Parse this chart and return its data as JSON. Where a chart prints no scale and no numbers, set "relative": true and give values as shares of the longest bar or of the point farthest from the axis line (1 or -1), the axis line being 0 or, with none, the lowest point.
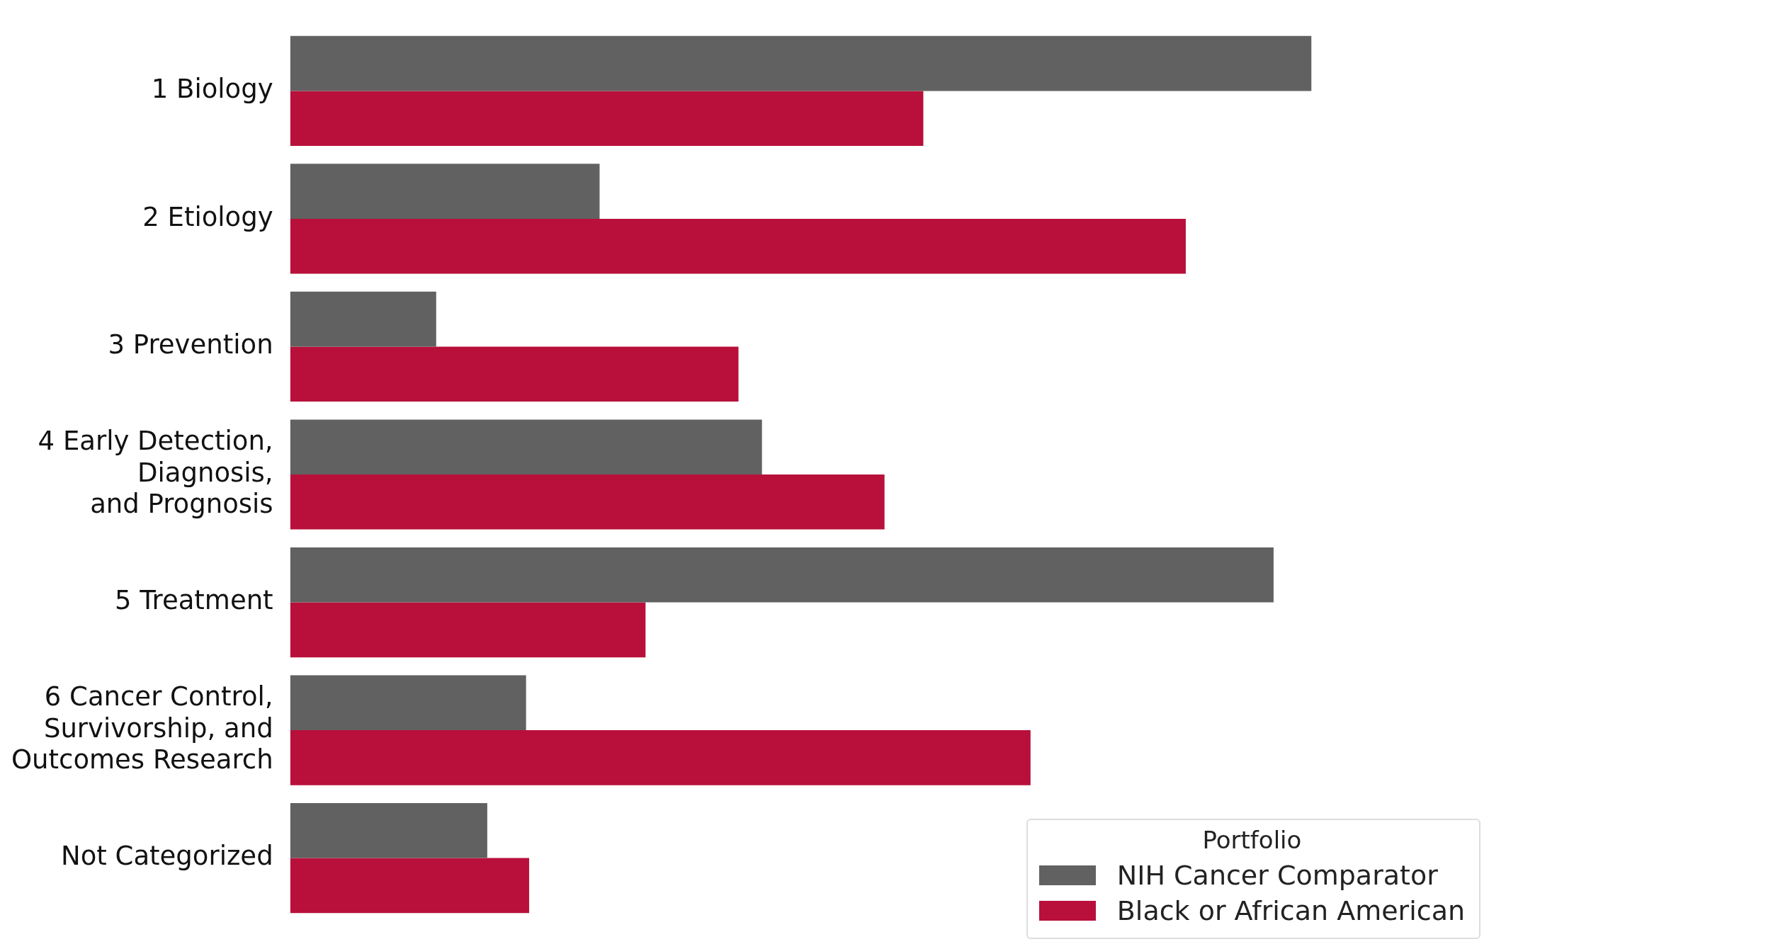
{
  "chart_data": {
    "type": "bar",
    "orientation": "horizontal",
    "relative": true,
    "categories": [
      "1 Biology",
      "2 Etiology",
      "3 Prevention",
      "4 Early Detection,\nDiagnosis,\nand Prognosis",
      "5 Treatment",
      "6 Cancer Control,\nSurvivorship, and\nOutcomes Research",
      "Not Categorized"
    ],
    "series": [
      {
        "name": "NIH Cancer Comparator",
        "color": "#616161",
        "values": [
          1,
          0.303,
          0.143,
          0.462,
          0.963,
          0.231,
          0.193
        ]
      },
      {
        "name": "Black or African American",
        "color": "#b8103a",
        "values": [
          0.62,
          0.877,
          0.439,
          0.582,
          0.348,
          0.725,
          0.234
        ]
      }
    ],
    "legend": "bottom right",
    "legend_title": "Portfolio"
  }
}
